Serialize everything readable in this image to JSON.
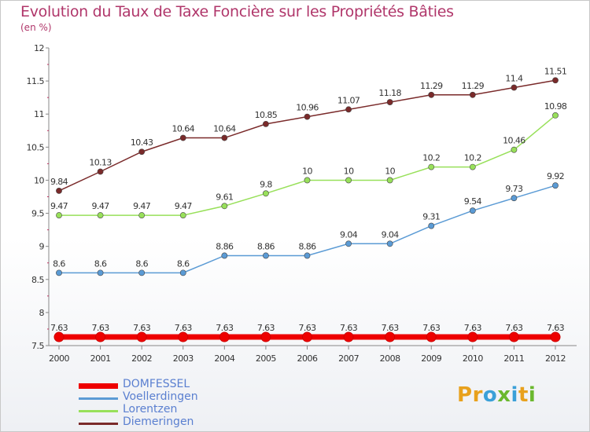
{
  "title": "Evolution du Taux de Taxe Foncière sur les Propriétés Bâties",
  "subtitle": "(en %)",
  "brand": {
    "letters": [
      "P",
      "r",
      "o",
      "x",
      "i",
      "t",
      "i"
    ],
    "colors": [
      "#e8a11d",
      "#e8a11d",
      "#3aa0d8",
      "#6ab82e",
      "#3aa0d8",
      "#e8a11d",
      "#6ab82e"
    ]
  },
  "chart_data": {
    "type": "line",
    "title": "Evolution du Taux de Taxe Foncière sur les Propriétés Bâties",
    "ylabel": "(en %)",
    "ylim": [
      7.5,
      12
    ],
    "yticks": [
      "7.5",
      "8",
      "8.5",
      "9",
      "9.5",
      "10",
      "10.5",
      "11",
      "11.5",
      "12"
    ],
    "x": [
      "2000",
      "2001",
      "2002",
      "2003",
      "2004",
      "2005",
      "2006",
      "2007",
      "2008",
      "2009",
      "2010",
      "2011",
      "2012"
    ],
    "grid": false,
    "legend": "bottom-left",
    "series": [
      {
        "name": "DOMFESSEL",
        "color": "#ee0000",
        "values": [
          7.63,
          7.63,
          7.63,
          7.63,
          7.63,
          7.63,
          7.63,
          7.63,
          7.63,
          7.63,
          7.63,
          7.63,
          7.63
        ],
        "labels": [
          "7.63",
          "7.63",
          "7.63",
          "7.63",
          "7.63",
          "7.63",
          "7.63",
          "7.63",
          "7.63",
          "7.63",
          "7.63",
          "7.63",
          "7.63"
        ]
      },
      {
        "name": "Voellerdingen",
        "color": "#5b9bd5",
        "values": [
          8.6,
          8.6,
          8.6,
          8.6,
          8.86,
          8.86,
          8.86,
          9.04,
          9.04,
          9.31,
          9.54,
          9.73,
          9.92
        ],
        "labels": [
          "8.6",
          "8.6",
          "8.6",
          "8.6",
          "8.86",
          "8.86",
          "8.86",
          "9.04",
          "9.04",
          "9.31",
          "9.54",
          "9.73",
          "9.92"
        ]
      },
      {
        "name": "Lorentzen",
        "color": "#98e05a",
        "values": [
          9.47,
          9.47,
          9.47,
          9.47,
          9.61,
          9.8,
          10,
          10,
          10,
          10.2,
          10.2,
          10.46,
          10.98
        ],
        "labels": [
          "9.47",
          "9.47",
          "9.47",
          "9.47",
          "9.61",
          "9.8",
          "10",
          "10",
          "10",
          "10.2",
          "10.2",
          "10.46",
          "10.98"
        ]
      },
      {
        "name": "Diemeringen",
        "color": "#7a2a2a",
        "values": [
          9.84,
          10.13,
          10.43,
          10.64,
          10.64,
          10.85,
          10.96,
          11.07,
          11.18,
          11.29,
          11.29,
          11.4,
          11.51
        ],
        "labels": [
          "9.84",
          "10.13",
          "10.43",
          "10.64",
          "10.64",
          "10.85",
          "10.96",
          "11.07",
          "11.18",
          "11.29",
          "11.29",
          "11.4",
          "11.51"
        ]
      }
    ]
  }
}
